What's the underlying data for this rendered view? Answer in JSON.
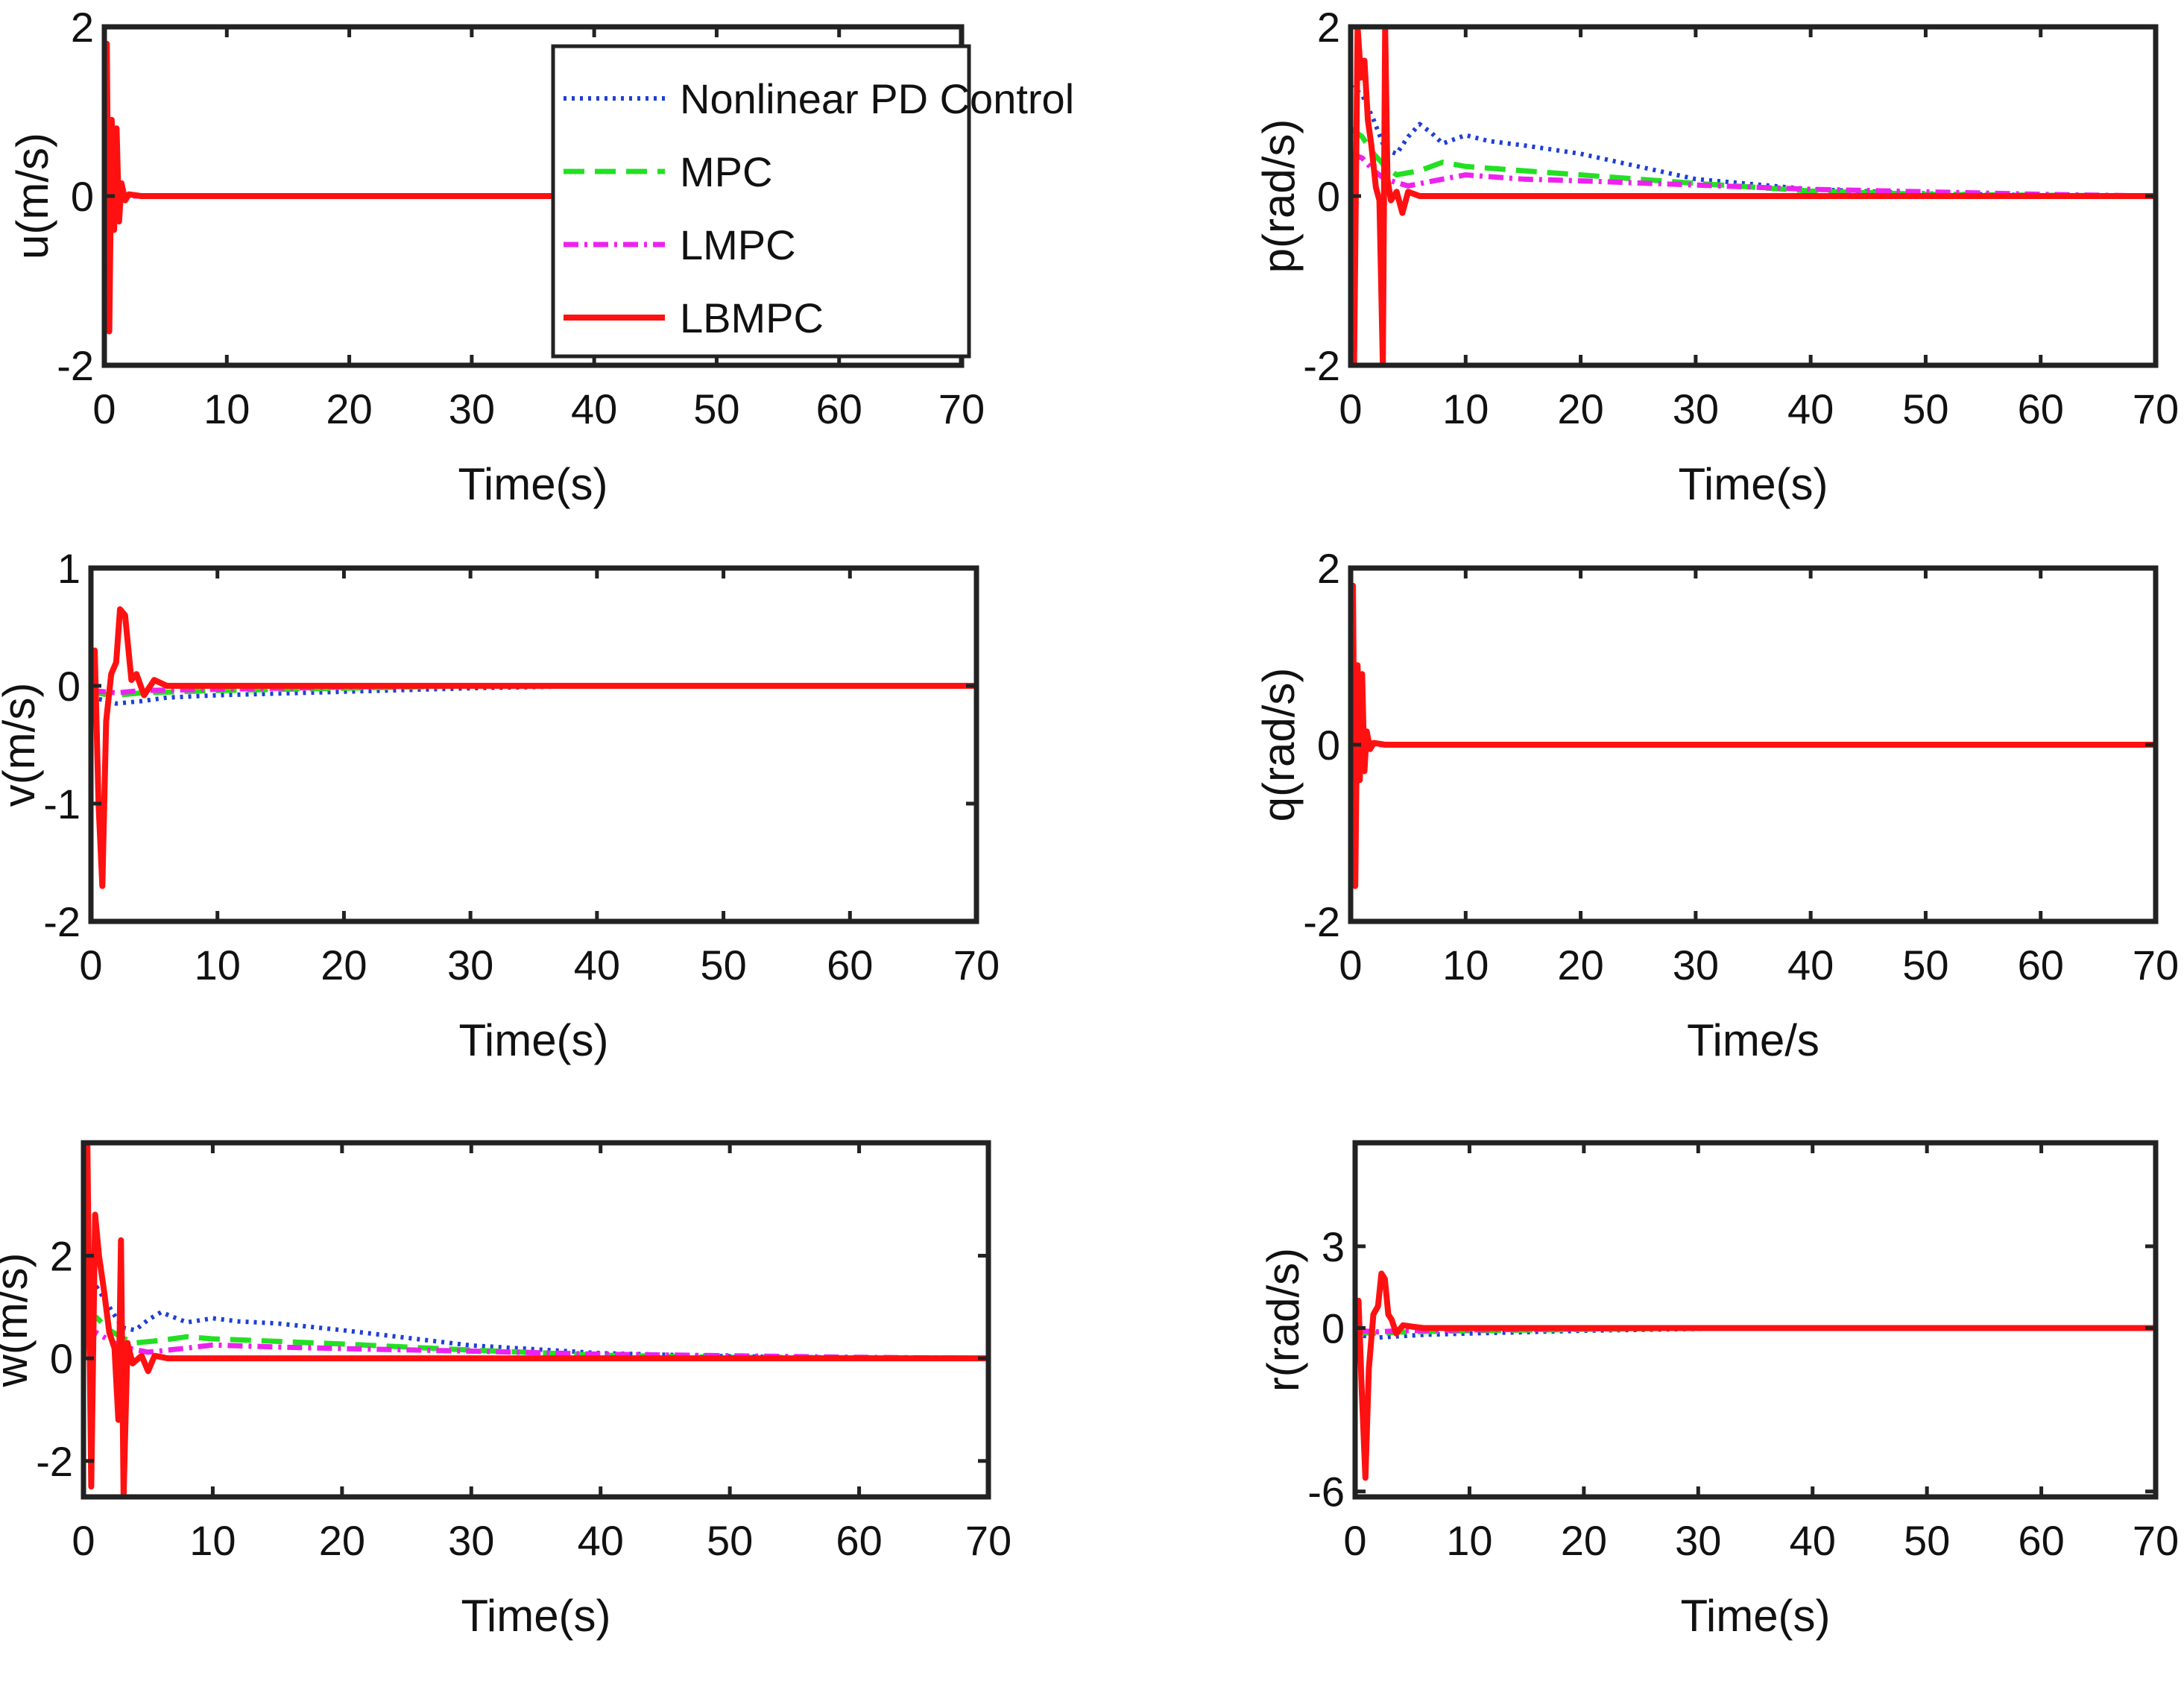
{
  "figure": {
    "x_range": [
      0,
      70
    ],
    "x_ticks": [
      0,
      10,
      20,
      30,
      40,
      50,
      60,
      70
    ]
  },
  "series_styles": [
    {
      "name": "Nonlinear PD Control",
      "color": "#1f3fd6",
      "dash": "4 7",
      "width": 6
    },
    {
      "name": "MPC",
      "color": "#22e022",
      "dash": "28 14",
      "width": 7
    },
    {
      "name": "LMPC",
      "color": "#ee22ee",
      "dash": "20 8 4 8",
      "width": 7
    },
    {
      "name": "LBMPC",
      "color": "#ff1111",
      "dash": "",
      "width": 8
    }
  ],
  "chart_data": [
    {
      "type": "line",
      "id": "u",
      "ylabel": "u(m/s)",
      "xlabel": "Time(s)",
      "ylim": [
        -2,
        2
      ],
      "yticks": [
        -2,
        0,
        2
      ],
      "legend": "top-right",
      "series": [
        {
          "name": "Nonlinear PD Control",
          "x": [
            0,
            0.5,
            1,
            1.5,
            70
          ],
          "y": [
            0,
            0.05,
            0,
            0,
            0
          ]
        },
        {
          "name": "MPC",
          "x": [
            0,
            0.5,
            1,
            1.5,
            70
          ],
          "y": [
            0,
            0.03,
            0,
            0,
            0
          ]
        },
        {
          "name": "LMPC",
          "x": [
            0,
            0.5,
            1,
            1.5,
            70
          ],
          "y": [
            0,
            0.03,
            0,
            0,
            0
          ]
        },
        {
          "name": "LBMPC",
          "x": [
            0,
            0.2,
            0.4,
            0.6,
            0.8,
            1.0,
            1.2,
            1.4,
            1.7,
            2.0,
            3,
            70
          ],
          "y": [
            0,
            1.8,
            -1.6,
            0.9,
            -0.4,
            0.8,
            -0.3,
            0.15,
            -0.05,
            0.02,
            0,
            0
          ]
        }
      ]
    },
    {
      "type": "line",
      "id": "p",
      "ylabel": "p(rad/s)",
      "xlabel": "Time(s)",
      "ylim": [
        -2,
        2
      ],
      "yticks": [
        -2,
        0,
        2
      ],
      "series": [
        {
          "name": "Nonlinear PD Control",
          "x": [
            0,
            1,
            2,
            3,
            4,
            5,
            6,
            7,
            8,
            10,
            12,
            15,
            20,
            30,
            40,
            50,
            60,
            70
          ],
          "y": [
            1.3,
            1.2,
            0.9,
            0.55,
            0.5,
            0.7,
            0.85,
            0.75,
            0.62,
            0.72,
            0.65,
            0.6,
            0.5,
            0.2,
            0.08,
            0.03,
            0.01,
            0
          ]
        },
        {
          "name": "MPC",
          "x": [
            0,
            1,
            2,
            3,
            4,
            6,
            8,
            10,
            15,
            20,
            30,
            40,
            50,
            60,
            70
          ],
          "y": [
            0.8,
            0.7,
            0.5,
            0.35,
            0.25,
            0.3,
            0.4,
            0.35,
            0.3,
            0.25,
            0.15,
            0.06,
            0.02,
            0.01,
            0
          ]
        },
        {
          "name": "LMPC",
          "x": [
            0,
            1,
            2,
            3,
            5,
            8,
            10,
            15,
            20,
            30,
            40,
            50,
            60,
            70
          ],
          "y": [
            0.5,
            0.45,
            0.3,
            0.2,
            0.12,
            0.2,
            0.25,
            0.2,
            0.18,
            0.13,
            0.08,
            0.05,
            0.02,
            0
          ]
        },
        {
          "name": "LBMPC",
          "x": [
            0,
            0.3,
            0.6,
            0.9,
            1.2,
            1.5,
            1.8,
            2.2,
            2.5,
            2.8,
            3.0,
            3.2,
            3.5,
            4.0,
            4.5,
            5.0,
            6,
            70
          ],
          "y": [
            0,
            -2.0,
            2.0,
            1.4,
            1.6,
            0.9,
            0.6,
            0.1,
            -0.05,
            -2.0,
            2.0,
            0.2,
            -0.05,
            0.05,
            -0.2,
            0.05,
            0,
            0
          ]
        }
      ]
    },
    {
      "type": "line",
      "id": "v",
      "ylabel": "v(m/s)",
      "xlabel": "Time(s)",
      "ylim": [
        -2,
        1
      ],
      "yticks": [
        -2,
        -1,
        0,
        1
      ],
      "series": [
        {
          "name": "Nonlinear PD Control",
          "x": [
            0,
            1,
            2,
            4,
            6,
            10,
            20,
            30,
            40,
            50,
            70
          ],
          "y": [
            -0.1,
            -0.12,
            -0.15,
            -0.13,
            -0.1,
            -0.08,
            -0.05,
            -0.02,
            0,
            0,
            0
          ]
        },
        {
          "name": "MPC",
          "x": [
            0,
            1,
            2,
            4,
            10,
            20,
            30,
            70
          ],
          "y": [
            -0.05,
            -0.07,
            -0.08,
            -0.06,
            -0.04,
            -0.02,
            0,
            0
          ]
        },
        {
          "name": "LMPC",
          "x": [
            0,
            1,
            2,
            4,
            10,
            20,
            30,
            70
          ],
          "y": [
            -0.04,
            -0.05,
            -0.06,
            -0.04,
            -0.03,
            -0.01,
            0,
            0
          ]
        },
        {
          "name": "LBMPC",
          "x": [
            0,
            0.3,
            0.6,
            0.9,
            1.2,
            1.6,
            2.0,
            2.3,
            2.7,
            3.2,
            3.6,
            4.2,
            5,
            6,
            70
          ],
          "y": [
            0,
            0.3,
            -1.0,
            -1.7,
            -0.3,
            0.1,
            0.2,
            0.65,
            0.6,
            0.05,
            0.1,
            -0.08,
            0.05,
            0,
            0
          ]
        }
      ]
    },
    {
      "type": "line",
      "id": "q",
      "ylabel": "q(rad/s)",
      "xlabel": "Time/s",
      "ylim": [
        -2,
        2
      ],
      "yticks": [
        -2,
        0,
        2
      ],
      "series": [
        {
          "name": "Nonlinear PD Control",
          "x": [
            0,
            0.5,
            1,
            1.5,
            70
          ],
          "y": [
            0,
            0.05,
            0,
            0,
            0
          ]
        },
        {
          "name": "MPC",
          "x": [
            0,
            0.5,
            1,
            1.5,
            70
          ],
          "y": [
            0,
            0.03,
            0,
            0,
            0
          ]
        },
        {
          "name": "LMPC",
          "x": [
            0,
            0.5,
            1,
            1.5,
            70
          ],
          "y": [
            0,
            0.03,
            0,
            0,
            0
          ]
        },
        {
          "name": "LBMPC",
          "x": [
            0,
            0.2,
            0.4,
            0.6,
            0.8,
            1.0,
            1.2,
            1.4,
            1.7,
            2.0,
            3,
            70
          ],
          "y": [
            0,
            1.8,
            -1.6,
            0.9,
            -0.4,
            0.8,
            -0.3,
            0.15,
            -0.05,
            0.02,
            0,
            0
          ]
        }
      ]
    },
    {
      "type": "line",
      "id": "w",
      "ylabel": "w(m/s)",
      "xlabel": "Time(s)",
      "ylim": [
        -2.7,
        4.2
      ],
      "yticks": [
        -2,
        0,
        2
      ],
      "series": [
        {
          "name": "Nonlinear PD Control",
          "x": [
            0,
            1,
            2,
            3,
            4,
            5,
            6,
            7,
            8,
            10,
            12,
            15,
            20,
            30,
            40,
            50,
            60,
            70
          ],
          "y": [
            1.6,
            1.4,
            1.0,
            0.6,
            0.55,
            0.75,
            0.9,
            0.8,
            0.7,
            0.78,
            0.72,
            0.68,
            0.55,
            0.25,
            0.1,
            0.04,
            0.01,
            0
          ]
        },
        {
          "name": "MPC",
          "x": [
            0,
            1,
            2,
            3,
            4,
            6,
            8,
            10,
            15,
            20,
            30,
            40,
            50,
            60,
            70
          ],
          "y": [
            0.9,
            0.8,
            0.55,
            0.4,
            0.3,
            0.35,
            0.42,
            0.38,
            0.33,
            0.28,
            0.16,
            0.06,
            0.02,
            0.01,
            0
          ]
        },
        {
          "name": "LMPC",
          "x": [
            0,
            1,
            2,
            3,
            5,
            8,
            10,
            15,
            20,
            30,
            40,
            50,
            60,
            70
          ],
          "y": [
            0.55,
            0.5,
            0.35,
            0.22,
            0.12,
            0.2,
            0.26,
            0.22,
            0.19,
            0.14,
            0.08,
            0.05,
            0.02,
            0
          ]
        },
        {
          "name": "LBMPC",
          "x": [
            0,
            0.3,
            0.6,
            0.9,
            1.2,
            1.6,
            2.0,
            2.4,
            2.7,
            2.9,
            3.1,
            3.4,
            3.8,
            4.5,
            5.0,
            5.5,
            6.5,
            70
          ],
          "y": [
            0,
            4.2,
            -2.5,
            2.8,
            2.0,
            1.3,
            0.5,
            0.2,
            -1.2,
            2.3,
            -2.7,
            0.3,
            -0.1,
            0.05,
            -0.25,
            0.05,
            0,
            0
          ]
        }
      ]
    },
    {
      "type": "line",
      "id": "r",
      "ylabel": "r(rad/s)",
      "xlabel": "Time(s)",
      "ylim": [
        -6.2,
        6.8
      ],
      "yticks": [
        -6,
        0,
        3
      ],
      "series": [
        {
          "name": "Nonlinear PD Control",
          "x": [
            0,
            1,
            2,
            4,
            6,
            10,
            20,
            30,
            40,
            70
          ],
          "y": [
            -0.25,
            -0.3,
            -0.35,
            -0.3,
            -0.25,
            -0.2,
            -0.1,
            -0.03,
            0,
            0
          ]
        },
        {
          "name": "MPC",
          "x": [
            0,
            1,
            2,
            4,
            10,
            20,
            30,
            70
          ],
          "y": [
            -0.15,
            -0.18,
            -0.2,
            -0.15,
            -0.1,
            -0.05,
            0,
            0
          ]
        },
        {
          "name": "LMPC",
          "x": [
            0,
            1,
            2,
            4,
            10,
            20,
            30,
            70
          ],
          "y": [
            -0.1,
            -0.12,
            -0.14,
            -0.1,
            -0.07,
            -0.03,
            0,
            0
          ]
        },
        {
          "name": "LBMPC",
          "x": [
            0,
            0.3,
            0.6,
            0.9,
            1.2,
            1.6,
            2.0,
            2.3,
            2.6,
            2.9,
            3.2,
            3.6,
            4.2,
            5,
            6,
            70
          ],
          "y": [
            0,
            1.0,
            -2.5,
            -5.5,
            -1.5,
            0.5,
            0.8,
            2.0,
            1.8,
            0.5,
            0.3,
            -0.2,
            0.1,
            0.05,
            0,
            0
          ]
        }
      ]
    }
  ]
}
